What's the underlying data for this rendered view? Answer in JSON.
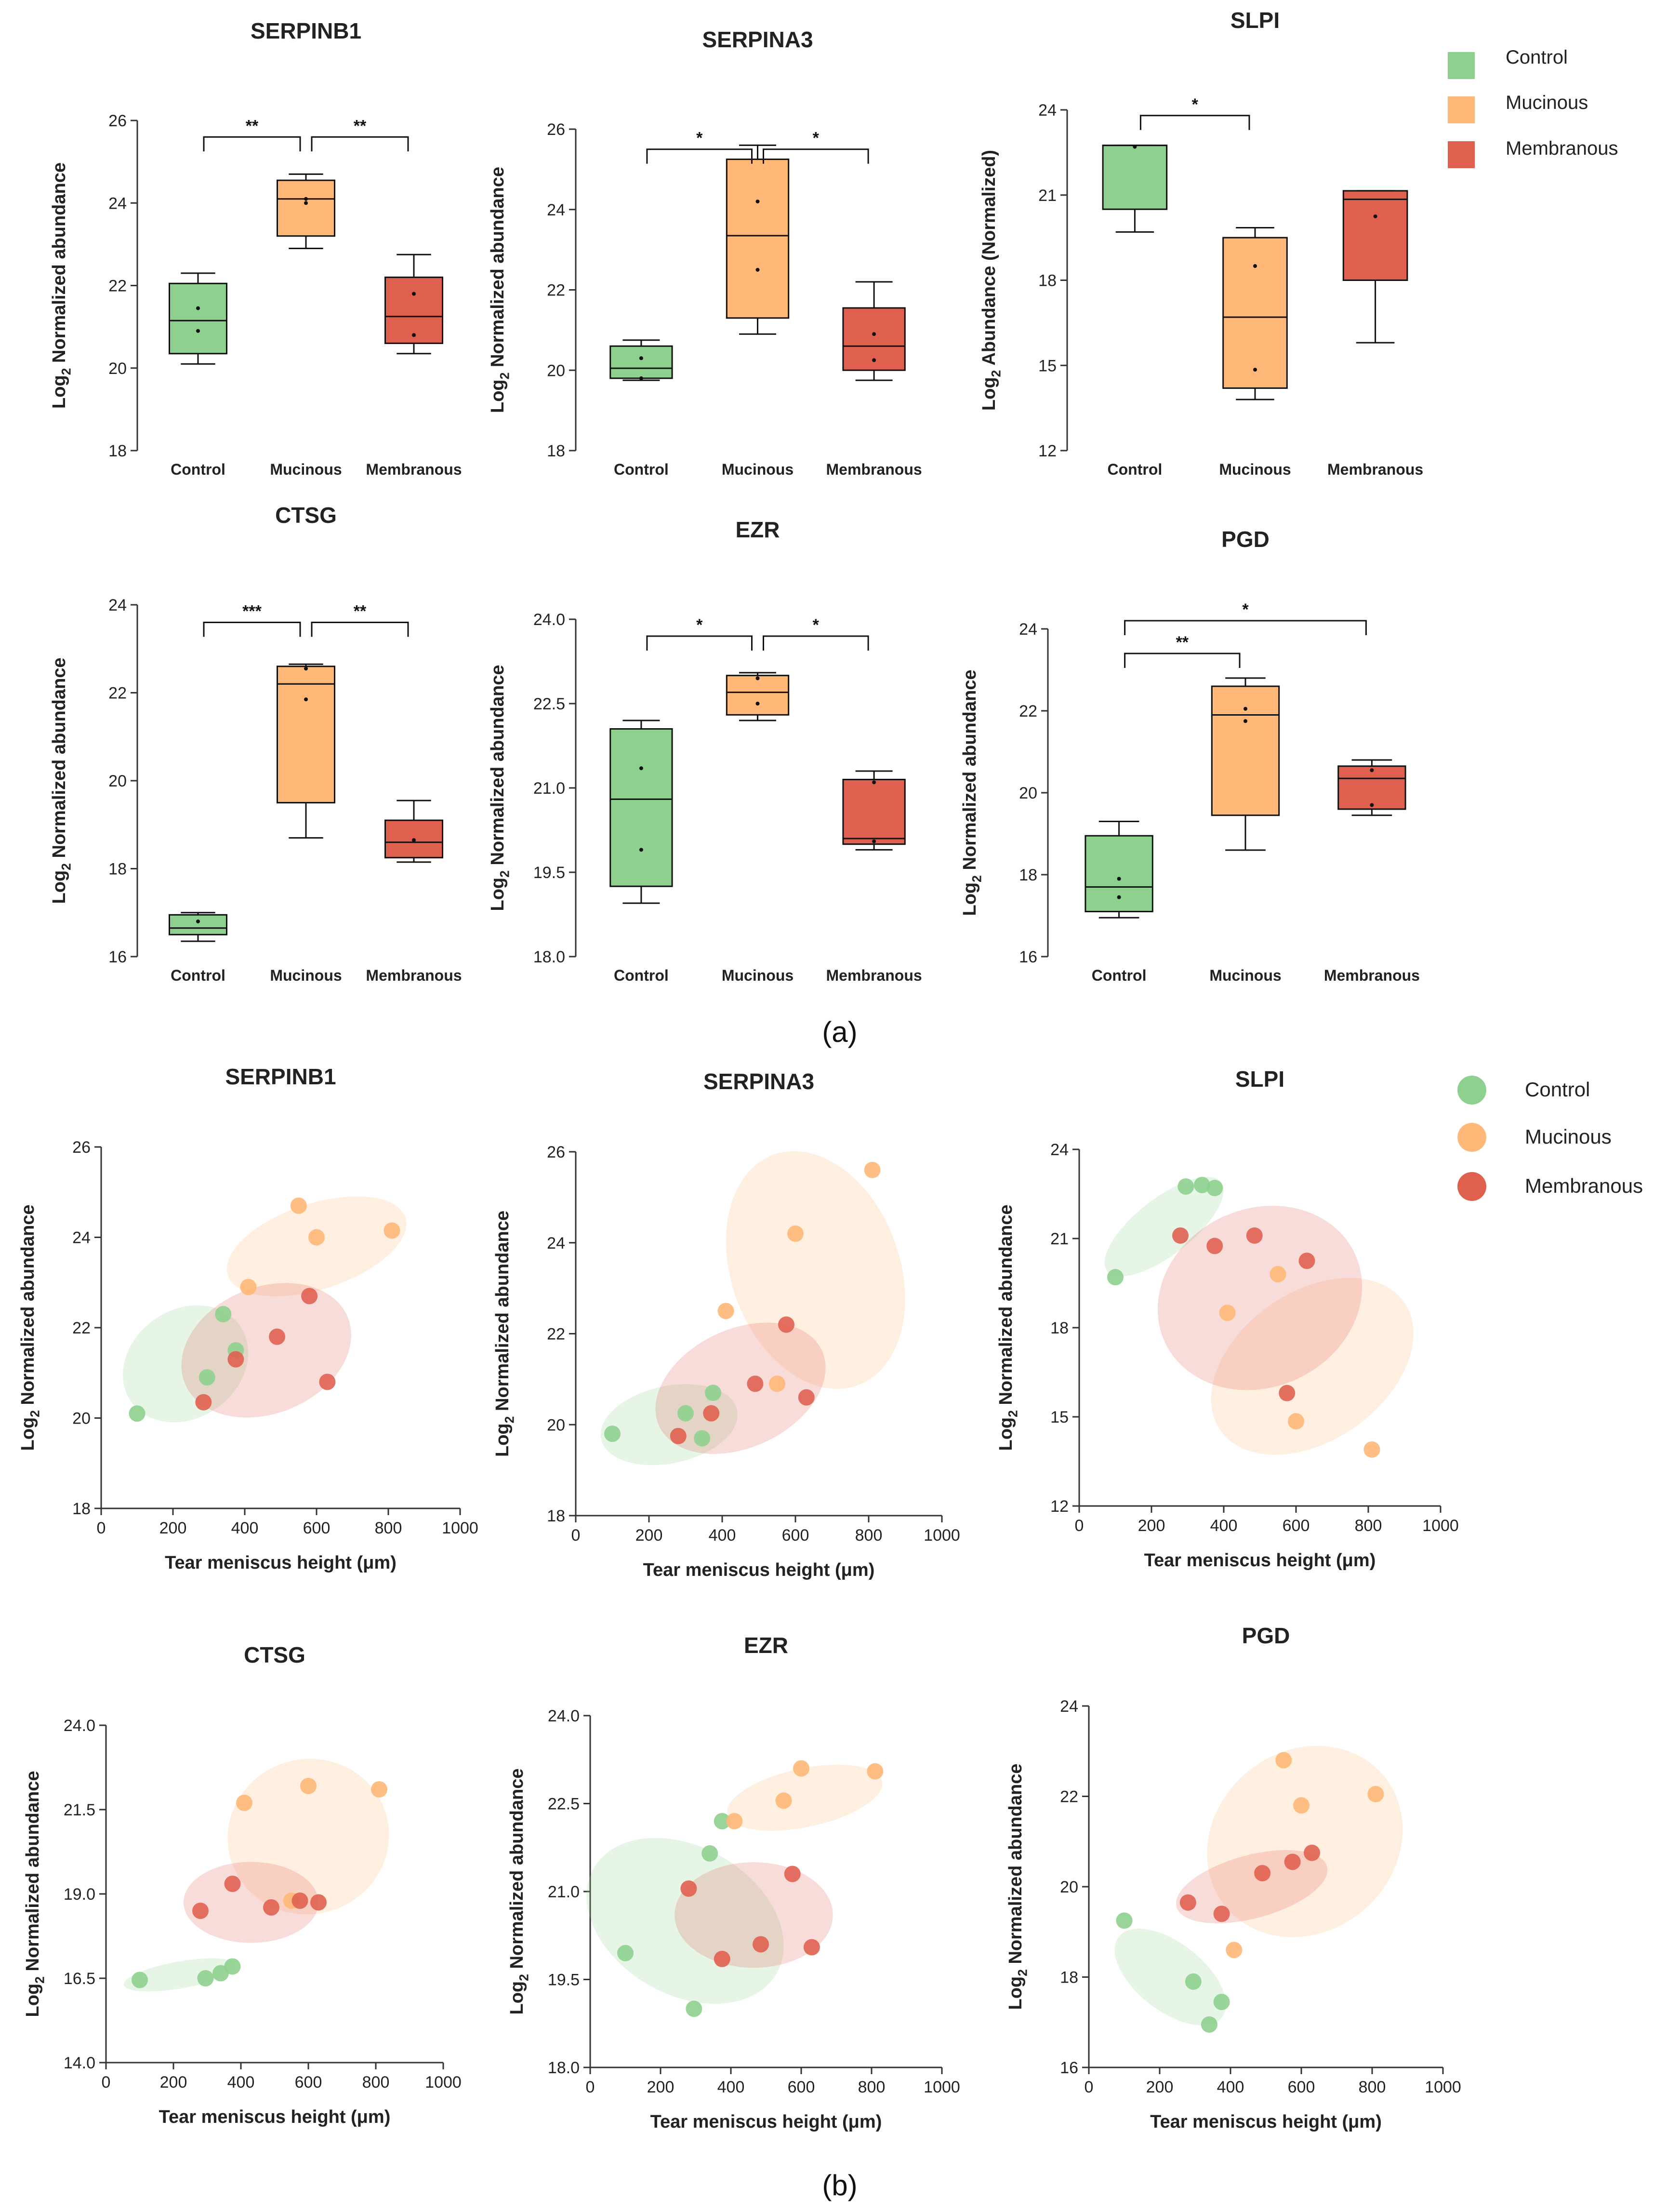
{
  "figure": {
    "panel_a_label": "(a)",
    "panel_b_label": "(b)",
    "colors": {
      "Control": "#8ed08e",
      "Mucinous": "#ffb877",
      "Membranous": "#e06050",
      "axis": "#333333"
    },
    "legend_a": [
      "Control",
      "Mucinous",
      "Membranous"
    ],
    "legend_b": [
      "Control",
      "Mucinous",
      "Membranous"
    ]
  },
  "chart_data": [
    {
      "type": "box",
      "title": "SERPINB1",
      "ylabel_main": "Log",
      "ylabel_sub": "2",
      "ylabel_rest": " Normalized abundance",
      "ylim": [
        18,
        26
      ],
      "yticks": [
        "18",
        "20",
        "22",
        "24",
        "26"
      ],
      "categories": [
        "Control",
        "Mucinous",
        "Membranous"
      ],
      "boxes": [
        {
          "min": 20.1,
          "q1": 20.35,
          "median": 21.15,
          "q3": 22.05,
          "max": 22.3,
          "points": [
            20.9,
            21.45
          ]
        },
        {
          "min": 22.9,
          "q1": 23.2,
          "median": 24.1,
          "q3": 24.55,
          "max": 24.7,
          "points": [
            24.0,
            24.1
          ]
        },
        {
          "min": 20.35,
          "q1": 20.6,
          "median": 21.25,
          "q3": 22.2,
          "max": 22.75,
          "points": [
            20.8,
            21.8
          ]
        }
      ],
      "sig": [
        {
          "from": 0,
          "to": 1,
          "label": "**",
          "level": 25.6
        },
        {
          "from": 1,
          "to": 2,
          "label": "**",
          "level": 25.6
        }
      ]
    },
    {
      "type": "box",
      "title": "SERPINA3",
      "ylabel_main": "Log",
      "ylabel_sub": "2",
      "ylabel_rest": " Normalized abundance",
      "ylim": [
        18,
        26
      ],
      "yticks": [
        "18",
        "20",
        "22",
        "24",
        "26"
      ],
      "categories": [
        "Control",
        "Mucinous",
        "Membranous"
      ],
      "boxes": [
        {
          "min": 19.75,
          "q1": 19.8,
          "median": 20.05,
          "q3": 20.6,
          "max": 20.75,
          "points": [
            20.3,
            19.8
          ]
        },
        {
          "min": 20.9,
          "q1": 21.3,
          "median": 23.35,
          "q3": 25.25,
          "max": 25.6,
          "points": [
            24.2,
            22.5
          ]
        },
        {
          "min": 19.75,
          "q1": 20.0,
          "median": 20.6,
          "q3": 21.55,
          "max": 22.2,
          "points": [
            20.9,
            20.25
          ]
        }
      ],
      "sig": [
        {
          "from": 0,
          "to": 1,
          "label": "*",
          "level": 25.5
        },
        {
          "from": 1,
          "to": 2,
          "label": "*",
          "level": 25.5
        }
      ]
    },
    {
      "type": "box",
      "title": "SLPI",
      "ylabel_main": "Log",
      "ylabel_sub": "2",
      "ylabel_rest": " Abundance (Normalized)",
      "ylim": [
        12,
        24
      ],
      "yticks": [
        "12",
        "15",
        "18",
        "21",
        "24"
      ],
      "categories": [
        "Control",
        "Mucinous",
        "Membranous"
      ],
      "boxes": [
        {
          "min": 19.7,
          "q1": 20.5,
          "median": 22.75,
          "q3": 22.75,
          "max": 22.75,
          "points": [
            22.7
          ]
        },
        {
          "min": 13.8,
          "q1": 14.2,
          "median": 16.7,
          "q3": 19.5,
          "max": 19.85,
          "points": [
            18.5,
            14.85
          ]
        },
        {
          "min": 15.8,
          "q1": 18.0,
          "median": 20.85,
          "q3": 21.15,
          "max": 21.15,
          "points": [
            20.25
          ]
        }
      ],
      "sig": [
        {
          "from": 0,
          "to": 1,
          "label": "*",
          "level": 23.8
        }
      ]
    },
    {
      "type": "box",
      "title": "CTSG",
      "ylabel_main": "Log",
      "ylabel_sub": "2",
      "ylabel_rest": " Normalized abundance",
      "ylim": [
        16,
        24
      ],
      "yticks": [
        "16",
        "18",
        "20",
        "22",
        "24"
      ],
      "categories": [
        "Control",
        "Mucinous",
        "Membranous"
      ],
      "boxes": [
        {
          "min": 16.35,
          "q1": 16.5,
          "median": 16.65,
          "q3": 16.95,
          "max": 17.0,
          "points": [
            16.8
          ]
        },
        {
          "min": 18.7,
          "q1": 19.5,
          "median": 22.2,
          "q3": 22.6,
          "max": 22.65,
          "points": [
            21.85,
            22.55
          ]
        },
        {
          "min": 18.15,
          "q1": 18.25,
          "median": 18.6,
          "q3": 19.1,
          "max": 19.55,
          "points": [
            18.65
          ]
        }
      ],
      "sig": [
        {
          "from": 0,
          "to": 1,
          "label": "***",
          "level": 23.6
        },
        {
          "from": 1,
          "to": 2,
          "label": "**",
          "level": 23.6
        }
      ]
    },
    {
      "type": "box",
      "title": "EZR",
      "ylabel_main": "Log",
      "ylabel_sub": "2",
      "ylabel_rest": " Normalized abundance",
      "ylim": [
        18,
        24
      ],
      "yticks": [
        "18.0",
        "19.5",
        "21.0",
        "22.5",
        "24.0"
      ],
      "categories": [
        "Control",
        "Mucinous",
        "Membranous"
      ],
      "boxes": [
        {
          "min": 18.95,
          "q1": 19.25,
          "median": 20.8,
          "q3": 22.05,
          "max": 22.2,
          "points": [
            21.35,
            19.9
          ]
        },
        {
          "min": 22.2,
          "q1": 22.3,
          "median": 22.7,
          "q3": 23.0,
          "max": 23.05,
          "points": [
            22.5,
            22.95
          ]
        },
        {
          "min": 19.9,
          "q1": 20.0,
          "median": 20.1,
          "q3": 21.15,
          "max": 21.3,
          "points": [
            21.1,
            20.05
          ]
        }
      ],
      "sig": [
        {
          "from": 0,
          "to": 1,
          "label": "*",
          "level": 23.7
        },
        {
          "from": 1,
          "to": 2,
          "label": "*",
          "level": 23.7
        }
      ]
    },
    {
      "type": "box",
      "title": "PGD",
      "ylabel_main": "Log",
      "ylabel_sub": "2",
      "ylabel_rest": " Normalized abundance",
      "ylim": [
        16,
        24
      ],
      "yticks": [
        "16",
        "18",
        "20",
        "22",
        "24"
      ],
      "categories": [
        "Control",
        "Mucinous",
        "Membranous"
      ],
      "boxes": [
        {
          "min": 16.95,
          "q1": 17.1,
          "median": 17.7,
          "q3": 18.95,
          "max": 19.3,
          "points": [
            17.9,
            17.45
          ]
        },
        {
          "min": 18.6,
          "q1": 19.45,
          "median": 21.9,
          "q3": 22.6,
          "max": 22.8,
          "points": [
            21.75,
            22.05
          ]
        },
        {
          "min": 19.45,
          "q1": 19.6,
          "median": 20.35,
          "q3": 20.65,
          "max": 20.8,
          "points": [
            20.55,
            19.7
          ]
        }
      ],
      "sig": [
        {
          "from": 0,
          "to": 1,
          "label": "**",
          "level": 23.4
        },
        {
          "from": 0,
          "to": 2,
          "label": "*",
          "level": 24.2
        }
      ]
    },
    {
      "type": "scatter",
      "title": "SERPINB1",
      "ylabel_main": "Log",
      "ylabel_sub": "2",
      "ylabel_rest": " Normalized abundance",
      "xlabel": "Tear meniscus height (μm)",
      "xlim": [
        0,
        1000
      ],
      "ylim": [
        18,
        26
      ],
      "xticks": [
        "0",
        "200",
        "400",
        "600",
        "800",
        "1000"
      ],
      "yticks": [
        "18",
        "20",
        "22",
        "24",
        "26"
      ],
      "series": [
        {
          "name": "Control",
          "x": [
            100,
            295,
            340,
            375
          ],
          "y": [
            20.1,
            20.9,
            22.3,
            21.5
          ],
          "ellipse": {
            "cx": 235,
            "cy": 21.2,
            "rx": 185,
            "ry": 1.2,
            "angle": -35
          }
        },
        {
          "name": "Mucinous",
          "x": [
            410,
            550,
            600,
            810
          ],
          "y": [
            22.9,
            24.7,
            24.0,
            24.15
          ],
          "ellipse": {
            "cx": 600,
            "cy": 23.8,
            "rx": 260,
            "ry": 0.95,
            "angle": -18
          }
        },
        {
          "name": "Membranous",
          "x": [
            285,
            375,
            490,
            580,
            630
          ],
          "y": [
            20.35,
            21.3,
            21.8,
            22.7,
            20.8
          ],
          "ellipse": {
            "cx": 460,
            "cy": 21.5,
            "rx": 245,
            "ry": 1.4,
            "angle": -22
          }
        }
      ]
    },
    {
      "type": "scatter",
      "title": "SERPINA3",
      "ylabel_main": "Log",
      "ylabel_sub": "2",
      "ylabel_rest": " Normalized abundance",
      "xlabel": "Tear meniscus height (μm)",
      "xlim": [
        0,
        1000
      ],
      "ylim": [
        18,
        26
      ],
      "xticks": [
        "0",
        "200",
        "400",
        "600",
        "800",
        "1000"
      ],
      "yticks": [
        "18",
        "20",
        "22",
        "24",
        "26"
      ],
      "series": [
        {
          "name": "Control",
          "x": [
            100,
            300,
            345,
            375
          ],
          "y": [
            19.8,
            20.25,
            19.7,
            20.7
          ],
          "ellipse": {
            "cx": 255,
            "cy": 20.0,
            "rx": 190,
            "ry": 0.85,
            "angle": -12
          }
        },
        {
          "name": "Mucinous",
          "x": [
            410,
            550,
            600,
            810
          ],
          "y": [
            22.5,
            20.9,
            24.2,
            25.6
          ],
          "ellipse": {
            "cx": 655,
            "cy": 23.4,
            "rx": 230,
            "ry": 2.7,
            "angle": -20
          }
        },
        {
          "name": "Membranous",
          "x": [
            280,
            370,
            490,
            575,
            630
          ],
          "y": [
            19.75,
            20.25,
            20.9,
            22.2,
            20.6
          ],
          "ellipse": {
            "cx": 450,
            "cy": 20.8,
            "rx": 245,
            "ry": 1.3,
            "angle": -25
          }
        }
      ]
    },
    {
      "type": "scatter",
      "title": "SLPI",
      "ylabel_main": "Log",
      "ylabel_sub": "2",
      "ylabel_rest": " Normalized abundance",
      "xlabel": "Tear meniscus height (μm)",
      "xlim": [
        0,
        1000
      ],
      "ylim": [
        12,
        24
      ],
      "xticks": [
        "0",
        "200",
        "400",
        "600",
        "800",
        "1000"
      ],
      "yticks": [
        "12",
        "15",
        "18",
        "21",
        "24"
      ],
      "series": [
        {
          "name": "Control",
          "x": [
            100,
            295,
            340,
            375
          ],
          "y": [
            19.7,
            22.75,
            22.8,
            22.7
          ],
          "ellipse": {
            "cx": 235,
            "cy": 21.4,
            "rx": 200,
            "ry": 0.95,
            "angle": -38
          }
        },
        {
          "name": "Mucinous",
          "x": [
            410,
            550,
            600,
            810
          ],
          "y": [
            18.5,
            19.8,
            14.85,
            13.9
          ],
          "ellipse": {
            "cx": 645,
            "cy": 16.7,
            "rx": 310,
            "ry": 2.5,
            "angle": -35
          }
        },
        {
          "name": "Membranous",
          "x": [
            280,
            375,
            485,
            575,
            630
          ],
          "y": [
            21.1,
            20.75,
            21.1,
            15.8,
            20.25
          ],
          "ellipse": {
            "cx": 500,
            "cy": 19.0,
            "rx": 290,
            "ry": 3.0,
            "angle": -25
          }
        }
      ]
    },
    {
      "type": "scatter",
      "title": "CTSG",
      "ylabel_main": "Log",
      "ylabel_sub": "2",
      "ylabel_rest": " Normalized abundance",
      "xlabel": "Tear meniscus height (μm)",
      "xlim": [
        0,
        1000
      ],
      "ylim": [
        14,
        24
      ],
      "xticks": [
        "0",
        "200",
        "400",
        "600",
        "800",
        "1000"
      ],
      "yticks": [
        "14.0",
        "16.5",
        "19.0",
        "21.5",
        "24.0"
      ],
      "series": [
        {
          "name": "Control",
          "x": [
            100,
            295,
            340,
            375
          ],
          "y": [
            16.45,
            16.5,
            16.65,
            16.85
          ],
          "ellipse": {
            "cx": 220,
            "cy": 16.6,
            "rx": 170,
            "ry": 0.4,
            "angle": -10
          }
        },
        {
          "name": "Mucinous",
          "x": [
            410,
            550,
            600,
            810
          ],
          "y": [
            21.7,
            18.8,
            22.2,
            22.1
          ],
          "ellipse": {
            "cx": 600,
            "cy": 20.7,
            "rx": 240,
            "ry": 2.3,
            "angle": -15
          }
        },
        {
          "name": "Membranous",
          "x": [
            280,
            375,
            490,
            575,
            630
          ],
          "y": [
            18.5,
            19.3,
            18.6,
            18.8,
            18.75
          ],
          "ellipse": {
            "cx": 430,
            "cy": 18.75,
            "rx": 200,
            "ry": 1.2,
            "angle": 0
          }
        }
      ]
    },
    {
      "type": "scatter",
      "title": "EZR",
      "ylabel_main": "Log",
      "ylabel_sub": "2",
      "ylabel_rest": " Normalized abundance",
      "xlabel": "Tear meniscus height (μm)",
      "xlim": [
        0,
        1000
      ],
      "ylim": [
        18,
        24
      ],
      "xticks": [
        "0",
        "200",
        "400",
        "600",
        "800",
        "1000"
      ],
      "yticks": [
        "18.0",
        "19.5",
        "21.0",
        "22.5",
        "24.0"
      ],
      "series": [
        {
          "name": "Control",
          "x": [
            100,
            295,
            340,
            375
          ],
          "y": [
            19.95,
            19.0,
            21.65,
            22.2
          ],
          "ellipse": {
            "cx": 270,
            "cy": 20.5,
            "rx": 210,
            "ry": 1.8,
            "angle": -60
          }
        },
        {
          "name": "Mucinous",
          "x": [
            410,
            550,
            600,
            810
          ],
          "y": [
            22.2,
            22.55,
            23.1,
            23.05
          ],
          "ellipse": {
            "cx": 610,
            "cy": 22.6,
            "rx": 225,
            "ry": 0.5,
            "angle": -12
          }
        },
        {
          "name": "Membranous",
          "x": [
            280,
            375,
            485,
            575,
            630
          ],
          "y": [
            21.05,
            19.85,
            20.1,
            21.3,
            20.05
          ],
          "ellipse": {
            "cx": 465,
            "cy": 20.6,
            "rx": 225,
            "ry": 0.9,
            "angle": 0
          }
        }
      ]
    },
    {
      "type": "scatter",
      "title": "PGD",
      "ylabel_main": "Log",
      "ylabel_sub": "2",
      "ylabel_rest": " Normalized abundance",
      "xlabel": "Tear meniscus height (μm)",
      "xlim": [
        0,
        1000
      ],
      "ylim": [
        16,
        24
      ],
      "xticks": [
        "0",
        "200",
        "400",
        "600",
        "800",
        "1000"
      ],
      "yticks": [
        "16",
        "18",
        "20",
        "22",
        "24"
      ],
      "series": [
        {
          "name": "Control",
          "x": [
            100,
            295,
            340,
            375
          ],
          "y": [
            19.25,
            17.9,
            16.95,
            17.45
          ],
          "ellipse": {
            "cx": 230,
            "cy": 18.0,
            "rx": 185,
            "ry": 0.75,
            "angle": 38
          }
        },
        {
          "name": "Mucinous",
          "x": [
            410,
            550,
            600,
            810
          ],
          "y": [
            18.6,
            22.8,
            21.8,
            22.05
          ],
          "ellipse": {
            "cx": 610,
            "cy": 21.0,
            "rx": 290,
            "ry": 2.0,
            "angle": -40
          }
        },
        {
          "name": "Membranous",
          "x": [
            280,
            375,
            490,
            575,
            630
          ],
          "y": [
            19.65,
            19.4,
            20.3,
            20.55,
            20.75
          ],
          "ellipse": {
            "cx": 460,
            "cy": 20.0,
            "rx": 220,
            "ry": 0.7,
            "angle": -15
          }
        }
      ]
    }
  ]
}
